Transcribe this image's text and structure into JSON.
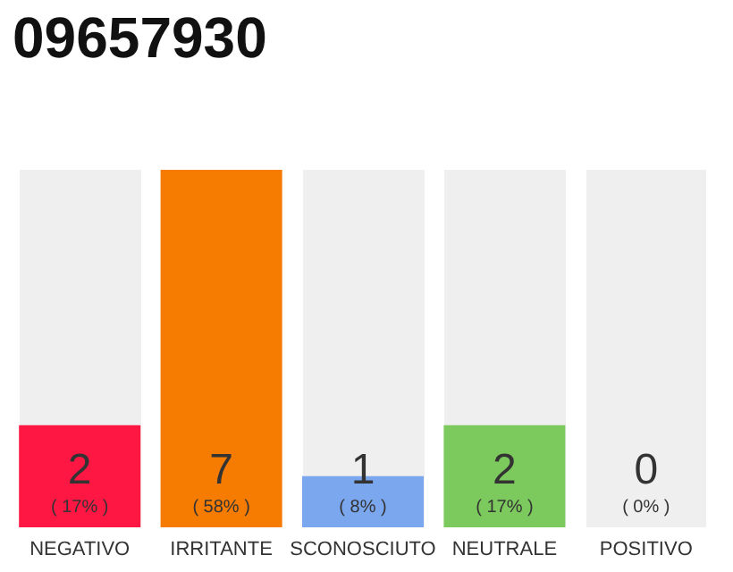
{
  "chart_data": {
    "type": "bar",
    "title": "09657930",
    "categories": [
      "NEGATIVO",
      "IRRITANTE",
      "SCONOSCIUTO",
      "NEUTRALE",
      "POSITIVO"
    ],
    "values": [
      2,
      7,
      1,
      2,
      0
    ],
    "value_labels": [
      "2\n( 17% )",
      "7\n( 58% )",
      "1\n( 8% )",
      "2\n( 17% )",
      "0\n( 0% )"
    ],
    "colors": [
      "#ff1744",
      "#f57c00",
      "#7aa7ee",
      "#7cc95d",
      "#cccccc"
    ],
    "grid": false
  }
}
